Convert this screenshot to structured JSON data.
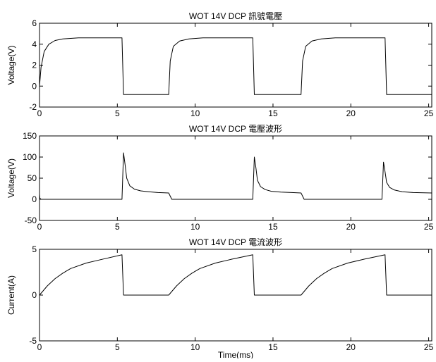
{
  "chart_data": [
    {
      "type": "line",
      "title": "WOT 14V DCP 訊號電壓",
      "xlabel": "",
      "ylabel": "Voltage(V)",
      "xlim": [
        0,
        25.2
      ],
      "ylim": [
        -2,
        6
      ],
      "xticks": [
        0,
        5,
        10,
        15,
        20,
        25
      ],
      "yticks": [
        -2,
        0,
        2,
        4,
        6
      ],
      "grid": false,
      "series": [
        {
          "x": [
            0,
            0.1,
            0.3,
            0.6,
            1,
            1.5,
            2.5,
            5.0,
            5.3,
            5.4,
            8.3,
            8.4,
            8.6,
            9.0,
            9.6,
            10.5,
            13.4,
            13.7,
            13.8,
            16.8,
            16.9,
            17.1,
            17.5,
            18.1,
            19.0,
            21.9,
            22.2,
            22.3,
            25.2
          ],
          "y": [
            0,
            1.8,
            3.3,
            4.0,
            4.35,
            4.5,
            4.6,
            4.6,
            4.6,
            -0.8,
            -0.8,
            2.4,
            3.8,
            4.3,
            4.5,
            4.6,
            4.6,
            4.6,
            -0.8,
            -0.8,
            2.4,
            3.8,
            4.3,
            4.5,
            4.6,
            4.6,
            4.6,
            -0.8,
            -0.8
          ]
        }
      ]
    },
    {
      "type": "line",
      "title": "WOT 14V DCP 電壓波形",
      "xlabel": "",
      "ylabel": "Voltage(V)",
      "xlim": [
        0,
        25.2
      ],
      "ylim": [
        -50,
        150
      ],
      "xticks": [
        0,
        5,
        10,
        15,
        20,
        25
      ],
      "yticks": [
        -50,
        0,
        50,
        100,
        150
      ],
      "grid": false,
      "series": [
        {
          "x": [
            0,
            0.02,
            0.1,
            5.3,
            5.4,
            5.5,
            5.6,
            5.8,
            6.1,
            6.5,
            7.0,
            7.6,
            8.3,
            8.5,
            13.7,
            13.8,
            13.9,
            14.0,
            14.2,
            14.5,
            14.9,
            15.5,
            16.2,
            16.8,
            17.0,
            22.0,
            22.1,
            22.2,
            22.3,
            22.5,
            22.8,
            23.3,
            24.0,
            25.2
          ],
          "y": [
            12,
            3,
            0,
            0,
            110,
            82,
            50,
            32,
            24,
            20,
            18,
            16,
            15,
            0,
            0,
            100,
            75,
            45,
            30,
            23,
            19,
            17,
            16,
            15,
            0,
            0,
            88,
            65,
            40,
            28,
            22,
            18,
            16,
            15
          ]
        }
      ]
    },
    {
      "type": "line",
      "title": "WOT 14V DCP 電流波形",
      "xlabel": "Time(ms)",
      "ylabel": "Current(A)",
      "xlim": [
        0,
        25.2
      ],
      "ylim": [
        -5,
        5
      ],
      "xticks": [
        0,
        5,
        10,
        15,
        20,
        25
      ],
      "yticks": [
        -5,
        0,
        5
      ],
      "grid": false,
      "series": [
        {
          "x": [
            0,
            0.5,
            1.0,
            1.5,
            2.0,
            3.0,
            4.0,
            5.3,
            5.4,
            8.3,
            8.8,
            9.3,
            9.8,
            10.3,
            11.3,
            12.3,
            13.7,
            13.8,
            16.8,
            17.3,
            17.8,
            18.3,
            18.8,
            19.8,
            20.8,
            22.2,
            22.3,
            25.2
          ],
          "y": [
            0,
            1.0,
            1.8,
            2.4,
            2.9,
            3.5,
            3.9,
            4.4,
            0,
            0,
            1.0,
            1.8,
            2.4,
            2.9,
            3.5,
            3.9,
            4.4,
            0,
            0,
            1.0,
            1.8,
            2.4,
            2.9,
            3.5,
            3.9,
            4.4,
            0,
            0
          ]
        }
      ]
    }
  ]
}
